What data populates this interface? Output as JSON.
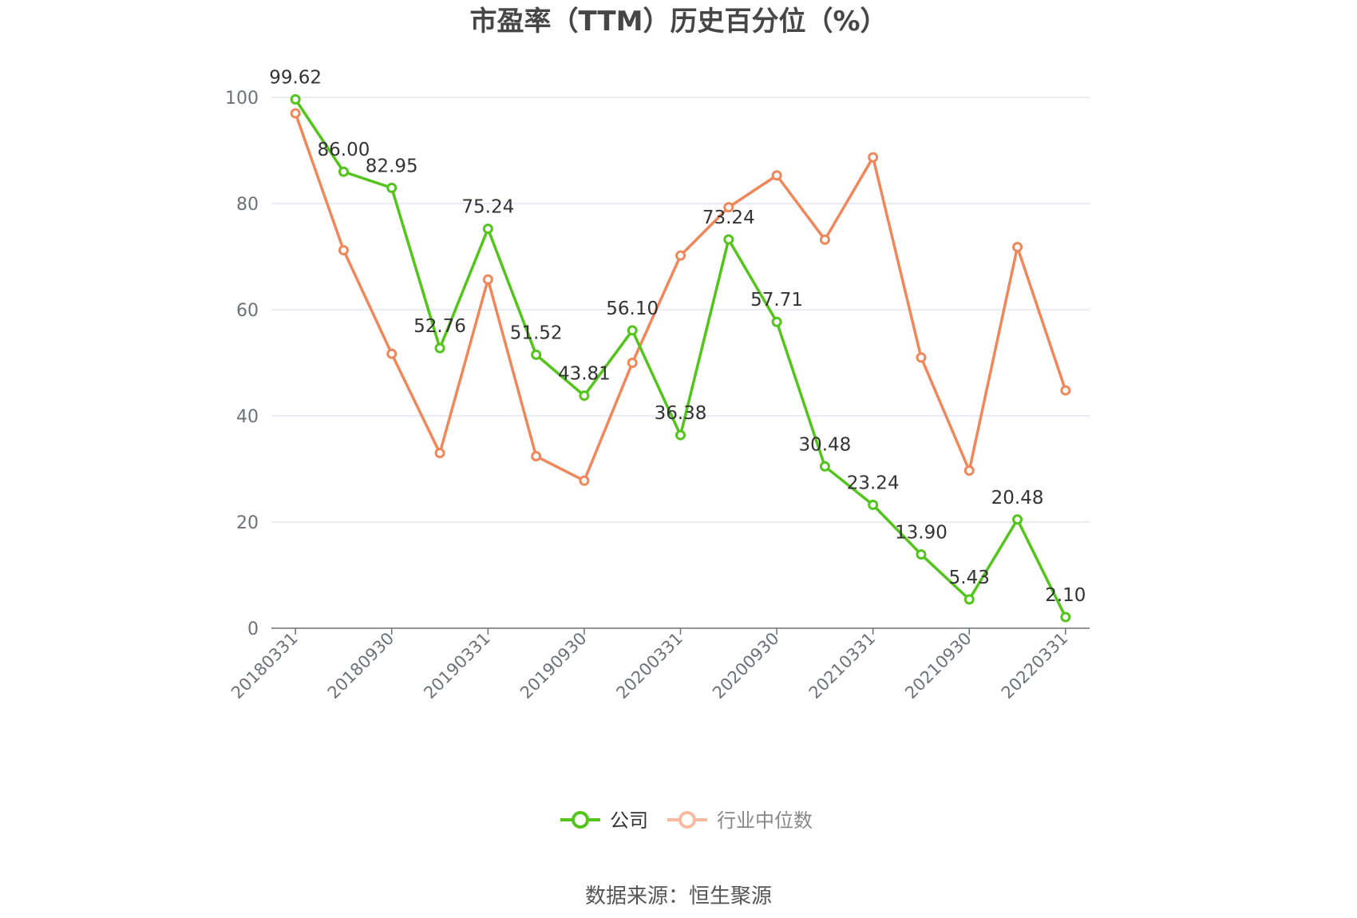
{
  "chart_data": {
    "type": "line",
    "title": "市盈率（TTM）历史百分位（%）",
    "xlabel": "",
    "ylabel": "",
    "ylim": [
      0,
      100
    ],
    "yticks": [
      0,
      20,
      40,
      60,
      80,
      100
    ],
    "grid": true,
    "legend_position": "bottom-center",
    "categories": [
      "20180331",
      "20180630",
      "20180930",
      "20181231",
      "20190331",
      "20190630",
      "20190930",
      "20191231",
      "20200331",
      "20200630",
      "20200930",
      "20201231",
      "20210331",
      "20210630",
      "20210930",
      "20211231",
      "20220331"
    ],
    "x_tick_labels": [
      "20180331",
      "20180930",
      "20190331",
      "20190930",
      "20200331",
      "20200930",
      "20210331",
      "20210930",
      "20220331"
    ],
    "series": [
      {
        "name": "公司",
        "color": "#52c41a",
        "values": [
          99.62,
          86.0,
          82.95,
          52.76,
          75.24,
          51.52,
          43.81,
          56.1,
          36.38,
          73.24,
          57.71,
          30.48,
          23.24,
          13.9,
          5.43,
          20.48,
          2.1
        ],
        "labels": [
          "99.62",
          "86.00",
          "82.95",
          "52.76",
          "75.24",
          "51.52",
          "43.81",
          "56.10",
          "36.38",
          "73.24",
          "57.71",
          "30.48",
          "23.24",
          "13.90",
          "5.43",
          "20.48",
          "2.10"
        ]
      },
      {
        "name": "行业中位数",
        "color": "#f0875a",
        "values": [
          97.0,
          71.2,
          51.7,
          33.0,
          65.7,
          32.4,
          27.8,
          50.0,
          70.2,
          79.3,
          85.3,
          73.2,
          88.7,
          51.0,
          29.7,
          71.8,
          44.8
        ]
      }
    ],
    "source": "数据来源：恒生聚源"
  }
}
